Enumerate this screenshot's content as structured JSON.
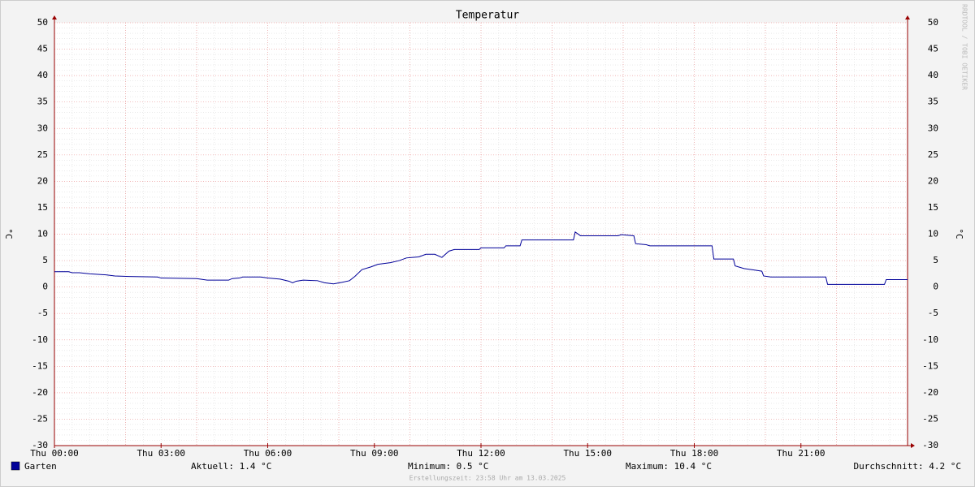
{
  "chart_data": {
    "type": "line",
    "title": "Temperatur",
    "y_label": "°C",
    "watermark": "RRDTOOL / TOBI OETIKER",
    "footer": "Erstellungszeit: 23:58 Uhr am 13.03.2025",
    "xlim": [
      0,
      24
    ],
    "xticks": [
      {
        "value": 0,
        "label": "Thu 00:00"
      },
      {
        "value": 3,
        "label": "Thu 03:00"
      },
      {
        "value": 6,
        "label": "Thu 06:00"
      },
      {
        "value": 9,
        "label": "Thu 09:00"
      },
      {
        "value": 12,
        "label": "Thu 12:00"
      },
      {
        "value": 15,
        "label": "Thu 15:00"
      },
      {
        "value": 18,
        "label": "Thu 18:00"
      },
      {
        "value": 21,
        "label": "Thu 21:00"
      }
    ],
    "ylim": [
      -30,
      50
    ],
    "yticks": [
      -30,
      -25,
      -20,
      -15,
      -10,
      -5,
      0,
      5,
      10,
      15,
      20,
      25,
      30,
      35,
      40,
      45,
      50
    ],
    "grid": true,
    "x": [
      0,
      0.4,
      0.5,
      0.7,
      1.0,
      1.45,
      1.7,
      2.1,
      2.9,
      3.0,
      4.0,
      4.2,
      4.3,
      4.9,
      5.0,
      5.2,
      5.3,
      5.8,
      6.0,
      6.35,
      6.6,
      6.7,
      6.8,
      7.0,
      7.4,
      7.6,
      7.85,
      8.1,
      8.3,
      8.45,
      8.65,
      8.9,
      9.1,
      9.45,
      9.7,
      9.9,
      10.25,
      10.45,
      10.7,
      10.9,
      11.1,
      11.25,
      11.95,
      12.0,
      12.65,
      12.7,
      13.1,
      13.15,
      14.6,
      14.65,
      14.8,
      15.85,
      15.95,
      16.3,
      16.35,
      16.65,
      16.75,
      18.5,
      18.55,
      19.1,
      19.15,
      19.4,
      19.7,
      19.9,
      19.95,
      20.15,
      21.7,
      21.75,
      23.35,
      23.4,
      24
    ],
    "series": [
      {
        "name": "Garten",
        "color": "#000099",
        "values": [
          2.9,
          2.9,
          2.7,
          2.7,
          2.5,
          2.3,
          2.1,
          2.0,
          1.9,
          1.7,
          1.6,
          1.4,
          1.3,
          1.3,
          1.6,
          1.7,
          1.9,
          1.9,
          1.7,
          1.5,
          1.1,
          0.8,
          1.1,
          1.3,
          1.2,
          0.8,
          0.6,
          0.9,
          1.2,
          2.0,
          3.3,
          3.8,
          4.3,
          4.6,
          5.0,
          5.5,
          5.7,
          6.2,
          6.2,
          5.6,
          6.8,
          7.1,
          7.1,
          7.4,
          7.4,
          7.8,
          7.8,
          8.9,
          8.9,
          10.4,
          9.7,
          9.7,
          9.9,
          9.7,
          8.2,
          8.0,
          7.8,
          7.8,
          5.3,
          5.3,
          4.0,
          3.5,
          3.2,
          3.0,
          2.1,
          1.9,
          1.9,
          0.5,
          0.5,
          1.4,
          1.4
        ]
      }
    ],
    "legend_stats": [
      "Aktuell: 1.4 °C",
      "Minimum: 0.5 °C",
      "Maximum: 10.4 °C",
      "Durchschnitt: 4.2 °C"
    ]
  }
}
